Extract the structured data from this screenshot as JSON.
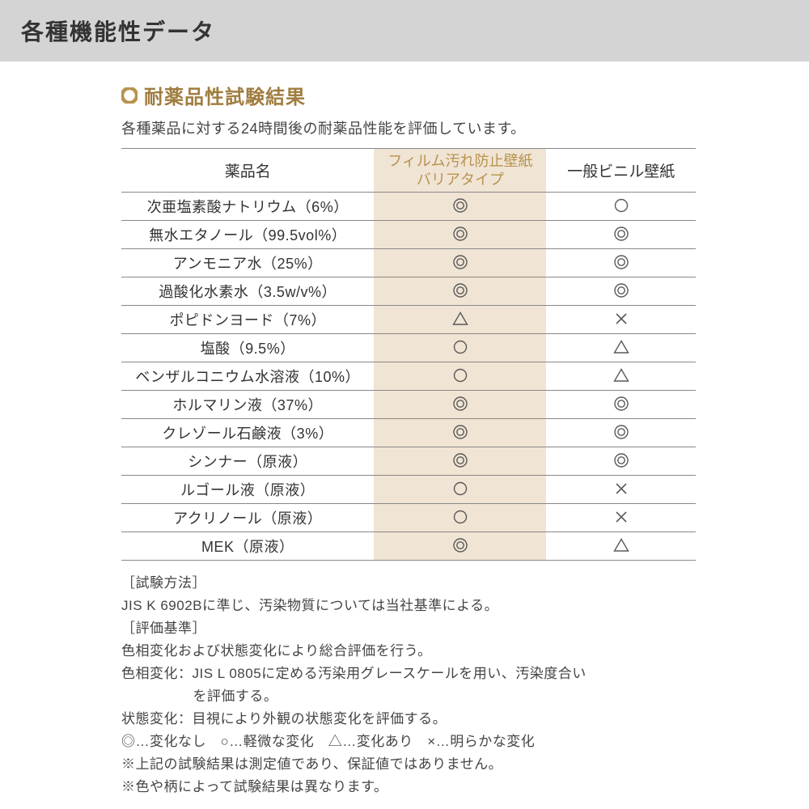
{
  "colors": {
    "header_bg": "#d4d4d4",
    "accent": "#a07d3f",
    "accent_light": "#b8934f",
    "highlight_bg": "#f0e4d4",
    "text": "#333333",
    "border": "#888888",
    "symbol": "#595959"
  },
  "header": {
    "title": "各種機能性データ"
  },
  "section": {
    "title": "耐薬品性試験結果",
    "subtitle": "各種薬品に対する24時間後の耐薬品性能を評価しています。"
  },
  "table": {
    "columns": [
      "薬品名",
      "フィルム汚れ防止壁紙\nバリアタイプ",
      "一般ビニル壁紙"
    ],
    "rows": [
      {
        "name": "次亜塩素酸ナトリウム（6%）",
        "a": "double",
        "b": "single"
      },
      {
        "name": "無水エタノール（99.5vol%）",
        "a": "double",
        "b": "double"
      },
      {
        "name": "アンモニア水（25%）",
        "a": "double",
        "b": "double"
      },
      {
        "name": "過酸化水素水（3.5w/v%）",
        "a": "double",
        "b": "double"
      },
      {
        "name": "ポピドンヨード（7%）",
        "a": "triangle",
        "b": "cross"
      },
      {
        "name": "塩酸（9.5%）",
        "a": "single",
        "b": "triangle"
      },
      {
        "name": "ベンザルコニウム水溶液（10%）",
        "a": "single",
        "b": "triangle"
      },
      {
        "name": "ホルマリン液（37%）",
        "a": "double",
        "b": "double"
      },
      {
        "name": "クレゾール石鹸液（3%）",
        "a": "double",
        "b": "double"
      },
      {
        "name": "シンナー（原液）",
        "a": "double",
        "b": "double"
      },
      {
        "name": "ルゴール液（原液）",
        "a": "single",
        "b": "cross"
      },
      {
        "name": "アクリノール（原液）",
        "a": "single",
        "b": "cross"
      },
      {
        "name": "MEK（原液）",
        "a": "double",
        "b": "triangle"
      }
    ]
  },
  "notes": {
    "l1": "［試験方法］",
    "l2": "JIS K 6902Bに準じ、汚染物質については当社基準による。",
    "l3": "［評価基準］",
    "l4": "色相変化および状態変化により総合評価を行う。",
    "l5a": "色相変化：JIS L 0805に定める汚染用グレースケールを用い、汚染度合い",
    "l5b": "を評価する。",
    "l6": "状態変化：目視により外観の状態変化を評価する。",
    "l7": "◎…変化なし　○…軽微な変化　△…変化あり　×…明らかな変化",
    "l8": "※上記の試験結果は測定値であり、保証値ではありません。",
    "l9": "※色や柄によって試験結果は異なります。"
  }
}
